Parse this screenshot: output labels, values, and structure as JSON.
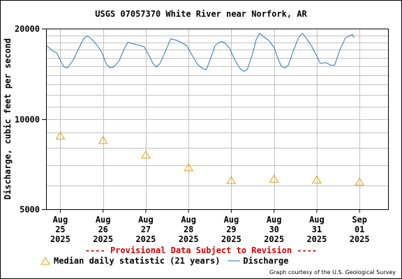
{
  "header": {
    "title": "USGS 07057370 White River near Norfork, AR"
  },
  "notice": "---- Provisional Data Subject to Revision ----",
  "credit": "Graph courtesy of the U.S. Geological Survey",
  "legend": {
    "median_label": "Median daily statistic (21 years)",
    "discharge_label": "Discharge"
  },
  "colors": {
    "discharge": "#1f77b4",
    "median": "#e0a000",
    "grid": "#c0c0c0",
    "notice": "#d00000"
  },
  "chart_data": {
    "type": "line",
    "title": "USGS 07057370 White River near Norfork, AR",
    "ylabel": "Discharge, cubic feet per second",
    "yscale": "log",
    "ylim": [
      5000,
      20000
    ],
    "yticks": [
      5000,
      10000,
      20000
    ],
    "ytick_labels": [
      "5000",
      "10000",
      "20000"
    ],
    "xlim": [
      "2025-08-24T16:00",
      "2025-09-01T16:00"
    ],
    "xticks": [
      {
        "date": "2025-08-25",
        "label": [
          "Aug",
          "25",
          "2025"
        ]
      },
      {
        "date": "2025-08-26",
        "label": [
          "Aug",
          "26",
          "2025"
        ]
      },
      {
        "date": "2025-08-27",
        "label": [
          "Aug",
          "27",
          "2025"
        ]
      },
      {
        "date": "2025-08-28",
        "label": [
          "Aug",
          "28",
          "2025"
        ]
      },
      {
        "date": "2025-08-29",
        "label": [
          "Aug",
          "29",
          "2025"
        ]
      },
      {
        "date": "2025-08-30",
        "label": [
          "Aug",
          "30",
          "2025"
        ]
      },
      {
        "date": "2025-08-31",
        "label": [
          "Aug",
          "31",
          "2025"
        ]
      },
      {
        "date": "2025-09-01",
        "label": [
          "Sep",
          "01",
          "2025"
        ]
      }
    ],
    "grid": true,
    "series": [
      {
        "name": "Discharge",
        "type": "line",
        "points": [
          {
            "t": "2025-08-24T16:00",
            "v": 17600
          },
          {
            "t": "2025-08-24T20:00",
            "v": 16800
          },
          {
            "t": "2025-08-24T22:00",
            "v": 16600
          },
          {
            "t": "2025-08-25T00:00",
            "v": 15700
          },
          {
            "t": "2025-08-25T02:00",
            "v": 14900
          },
          {
            "t": "2025-08-25T04:00",
            "v": 14800
          },
          {
            "t": "2025-08-25T07:00",
            "v": 15600
          },
          {
            "t": "2025-08-25T10:00",
            "v": 17000
          },
          {
            "t": "2025-08-25T13:00",
            "v": 18500
          },
          {
            "t": "2025-08-25T15:00",
            "v": 18900
          },
          {
            "t": "2025-08-25T17:00",
            "v": 18600
          },
          {
            "t": "2025-08-25T20:00",
            "v": 17800
          },
          {
            "t": "2025-08-25T23:00",
            "v": 16800
          },
          {
            "t": "2025-08-26T02:00",
            "v": 15200
          },
          {
            "t": "2025-08-26T04:00",
            "v": 14800
          },
          {
            "t": "2025-08-26T06:00",
            "v": 14900
          },
          {
            "t": "2025-08-26T09:00",
            "v": 15600
          },
          {
            "t": "2025-08-26T12:00",
            "v": 17200
          },
          {
            "t": "2025-08-26T14:00",
            "v": 18000
          },
          {
            "t": "2025-08-26T17:00",
            "v": 17800
          },
          {
            "t": "2025-08-26T20:00",
            "v": 17600
          },
          {
            "t": "2025-08-26T23:00",
            "v": 17400
          },
          {
            "t": "2025-08-27T02:00",
            "v": 16200
          },
          {
            "t": "2025-08-27T04:00",
            "v": 15300
          },
          {
            "t": "2025-08-27T06:00",
            "v": 14900
          },
          {
            "t": "2025-08-27T08:00",
            "v": 15300
          },
          {
            "t": "2025-08-27T11:00",
            "v": 16800
          },
          {
            "t": "2025-08-27T14:00",
            "v": 18500
          },
          {
            "t": "2025-08-27T17:00",
            "v": 18300
          },
          {
            "t": "2025-08-27T20:00",
            "v": 18000
          },
          {
            "t": "2025-08-27T23:00",
            "v": 17500
          },
          {
            "t": "2025-08-28T02:00",
            "v": 16300
          },
          {
            "t": "2025-08-28T05:00",
            "v": 15200
          },
          {
            "t": "2025-08-28T08:00",
            "v": 14700
          },
          {
            "t": "2025-08-28T10:00",
            "v": 14600
          },
          {
            "t": "2025-08-28T12:00",
            "v": 15700
          },
          {
            "t": "2025-08-28T15:00",
            "v": 17600
          },
          {
            "t": "2025-08-28T18:00",
            "v": 18100
          },
          {
            "t": "2025-08-28T20:00",
            "v": 18000
          },
          {
            "t": "2025-08-28T23:00",
            "v": 17200
          },
          {
            "t": "2025-08-29T02:00",
            "v": 15700
          },
          {
            "t": "2025-08-29T05:00",
            "v": 14700
          },
          {
            "t": "2025-08-29T07:00",
            "v": 14400
          },
          {
            "t": "2025-08-29T09:00",
            "v": 14600
          },
          {
            "t": "2025-08-29T12:00",
            "v": 16500
          },
          {
            "t": "2025-08-29T14:00",
            "v": 18400
          },
          {
            "t": "2025-08-29T16:00",
            "v": 19300
          },
          {
            "t": "2025-08-29T18:00",
            "v": 18800
          },
          {
            "t": "2025-08-29T21:00",
            "v": 18300
          },
          {
            "t": "2025-08-30T00:00",
            "v": 17300
          },
          {
            "t": "2025-08-30T02:00",
            "v": 16000
          },
          {
            "t": "2025-08-30T04:00",
            "v": 15000
          },
          {
            "t": "2025-08-30T06:00",
            "v": 14800
          },
          {
            "t": "2025-08-30T08:00",
            "v": 15100
          },
          {
            "t": "2025-08-30T11:00",
            "v": 17000
          },
          {
            "t": "2025-08-30T14:00",
            "v": 18800
          },
          {
            "t": "2025-08-30T16:00",
            "v": 19300
          },
          {
            "t": "2025-08-30T18:00",
            "v": 18600
          },
          {
            "t": "2025-08-30T21:00",
            "v": 17500
          },
          {
            "t": "2025-08-31T00:00",
            "v": 16200
          },
          {
            "t": "2025-08-31T02:00",
            "v": 15300
          },
          {
            "t": "2025-08-31T05:00",
            "v": 15400
          },
          {
            "t": "2025-08-31T08:00",
            "v": 15100
          },
          {
            "t": "2025-08-31T10:00",
            "v": 15100
          },
          {
            "t": "2025-08-31T13:00",
            "v": 17000
          },
          {
            "t": "2025-08-31T16:00",
            "v": 18600
          },
          {
            "t": "2025-08-31T18:00",
            "v": 18900
          },
          {
            "t": "2025-08-31T20:00",
            "v": 19100
          },
          {
            "t": "2025-08-31T21:00",
            "v": 18700
          }
        ]
      },
      {
        "name": "Median daily statistic (21 years)",
        "type": "marker",
        "points": [
          {
            "t": "2025-08-25T00:00",
            "v": 8800
          },
          {
            "t": "2025-08-26T00:00",
            "v": 8500
          },
          {
            "t": "2025-08-27T00:00",
            "v": 7600
          },
          {
            "t": "2025-08-28T00:00",
            "v": 6900
          },
          {
            "t": "2025-08-29T00:00",
            "v": 6250
          },
          {
            "t": "2025-08-30T00:00",
            "v": 6320
          },
          {
            "t": "2025-08-31T00:00",
            "v": 6280
          },
          {
            "t": "2025-09-01T00:00",
            "v": 6180
          }
        ]
      }
    ]
  }
}
